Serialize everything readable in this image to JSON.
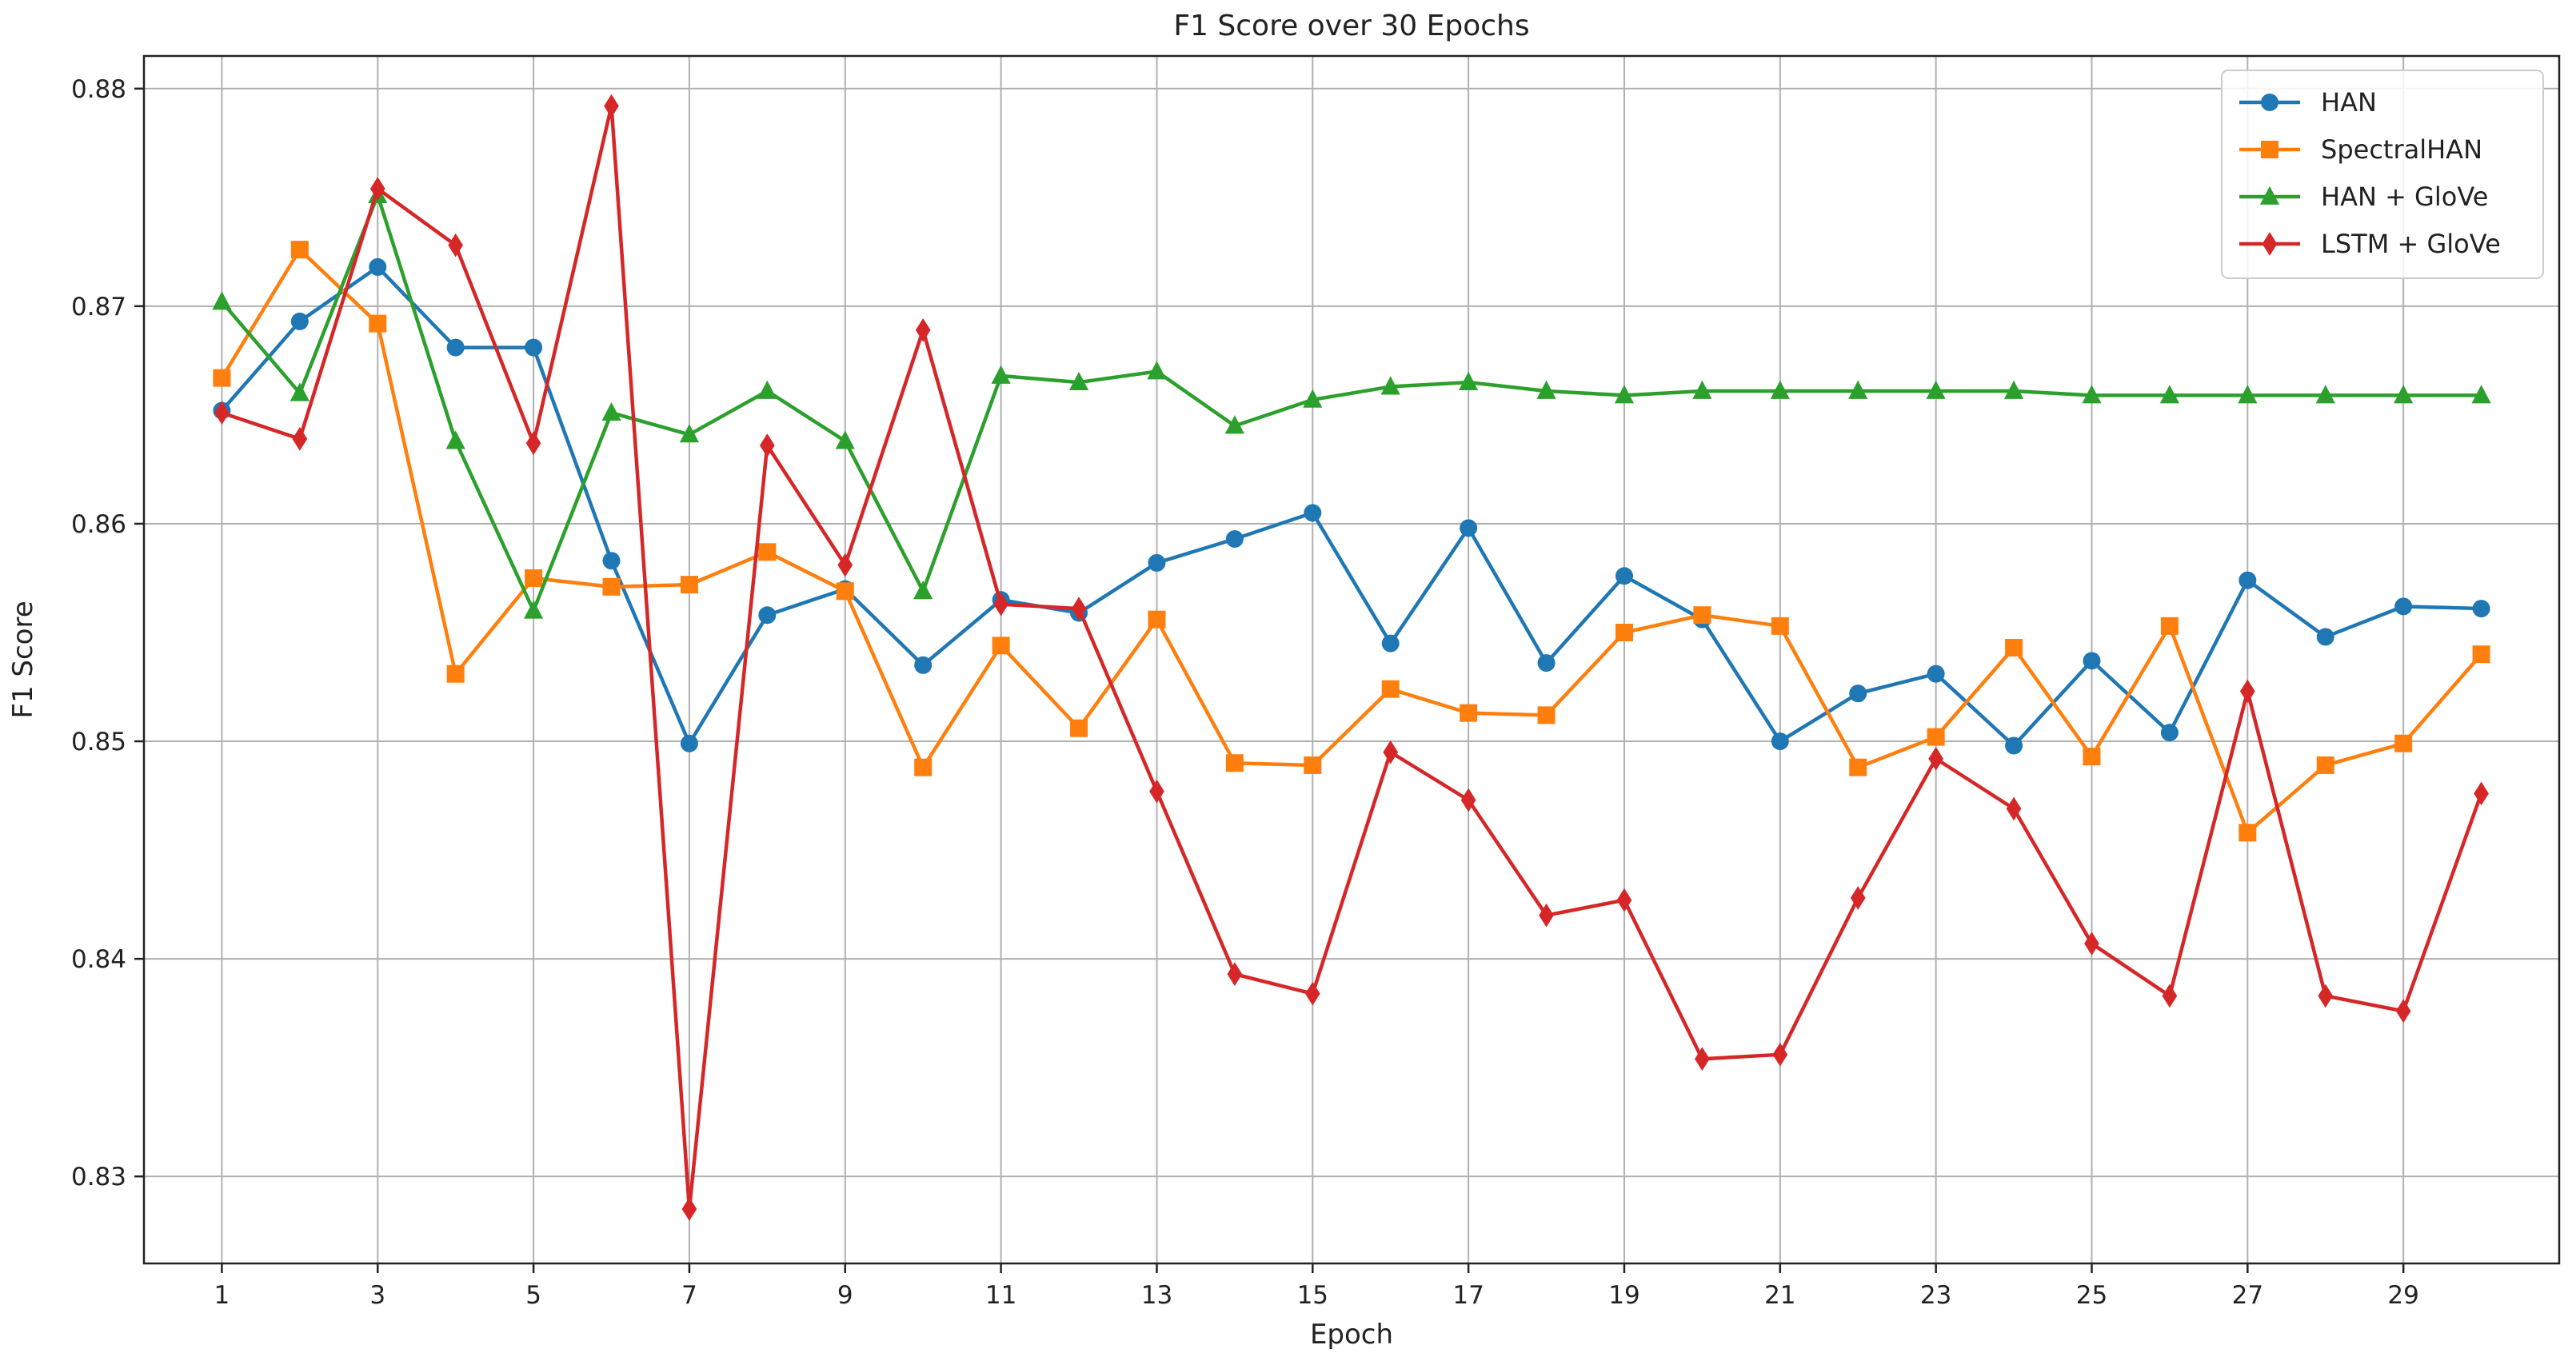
{
  "chart_data": {
    "type": "line",
    "title": "F1 Score over 30 Epochs",
    "xlabel": "Epoch",
    "ylabel": "F1 Score",
    "x": [
      1,
      2,
      3,
      4,
      5,
      6,
      7,
      8,
      9,
      10,
      11,
      12,
      13,
      14,
      15,
      16,
      17,
      18,
      19,
      20,
      21,
      22,
      23,
      24,
      25,
      26,
      27,
      28,
      29,
      30
    ],
    "xlim": [
      0,
      31
    ],
    "xticks": [
      1,
      3,
      5,
      7,
      9,
      11,
      13,
      15,
      17,
      19,
      21,
      23,
      25,
      27,
      29
    ],
    "ylim": [
      0.826,
      0.8815
    ],
    "yticks": [
      0.83,
      0.84,
      0.85,
      0.86,
      0.87,
      0.88
    ],
    "ytick_labels": [
      "0.83",
      "0.84",
      "0.85",
      "0.86",
      "0.87",
      "0.88"
    ],
    "grid": true,
    "legend_position": "top-right",
    "series": [
      {
        "name": "HAN",
        "color": "#1f77b4",
        "marker": "circle",
        "values": [
          0.8652,
          0.8693,
          0.8718,
          0.8681,
          0.8681,
          0.8583,
          0.8499,
          0.8558,
          0.857,
          0.8535,
          0.8565,
          0.8559,
          0.8582,
          0.8593,
          0.8605,
          0.8545,
          0.8598,
          0.8536,
          0.8576,
          0.8556,
          0.85,
          0.8522,
          0.8531,
          0.8498,
          0.8537,
          0.8504,
          0.8574,
          0.8548,
          0.8562,
          0.8561
        ]
      },
      {
        "name": "SpectralHAN",
        "color": "#ff7f0e",
        "marker": "square",
        "values": [
          0.8667,
          0.8726,
          0.8692,
          0.8531,
          0.8575,
          0.8571,
          0.8572,
          0.8587,
          0.8569,
          0.8488,
          0.8544,
          0.8506,
          0.8556,
          0.849,
          0.8489,
          0.8524,
          0.8513,
          0.8512,
          0.855,
          0.8558,
          0.8553,
          0.8488,
          0.8502,
          0.8543,
          0.8493,
          0.8553,
          0.8458,
          0.8489,
          0.8499,
          0.854
        ]
      },
      {
        "name": "HAN + GloVe",
        "color": "#2ca02c",
        "marker": "triangle",
        "values": [
          0.8702,
          0.866,
          0.8751,
          0.8638,
          0.856,
          0.8651,
          0.8641,
          0.8661,
          0.8638,
          0.8569,
          0.8668,
          0.8665,
          0.867,
          0.8645,
          0.8657,
          0.8663,
          0.8665,
          0.8661,
          0.8659,
          0.8661,
          0.8661,
          0.8661,
          0.8661,
          0.8661,
          0.8659,
          0.8659,
          0.8659,
          0.8659,
          0.8659,
          0.8659
        ]
      },
      {
        "name": "LSTM + GloVe",
        "color": "#d62728",
        "marker": "diamond",
        "values": [
          0.8651,
          0.8639,
          0.8754,
          0.8728,
          0.8637,
          0.8792,
          0.8285,
          0.8636,
          0.8581,
          0.8689,
          0.8563,
          0.8561,
          0.8477,
          0.8393,
          0.8384,
          0.8495,
          0.8473,
          0.842,
          0.8427,
          0.8354,
          0.8356,
          0.8428,
          0.8492,
          0.8469,
          0.8407,
          0.8383,
          0.8523,
          0.8383,
          0.8376,
          0.8476
        ]
      }
    ]
  }
}
